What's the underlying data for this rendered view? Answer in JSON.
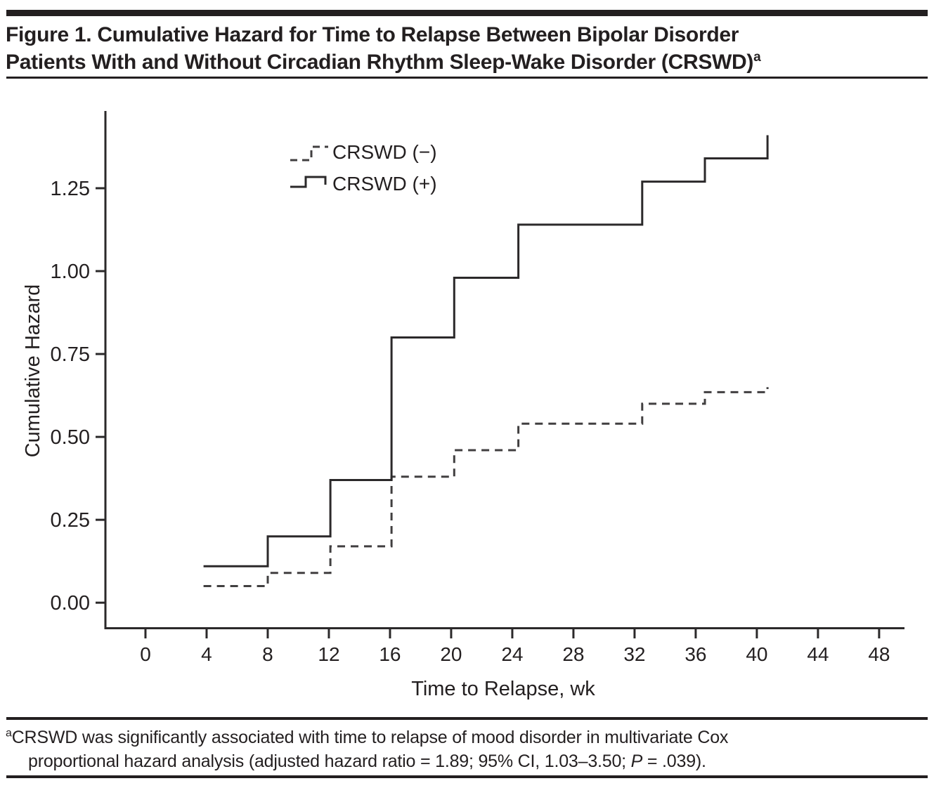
{
  "header": {
    "title_line1": "Figure 1. Cumulative Hazard for Time to Relapse Between Bipolar Disorder",
    "title_line2": "Patients With and Without Circadian Rhythm Sleep-Wake Disorder (CRSWD)",
    "title_sup": "a"
  },
  "footnote": {
    "sup": "a",
    "line1": "CRSWD was significantly associated with time to relapse of mood disorder in multivariate Cox",
    "line2_pre": "proportional hazard analysis (adjusted hazard ratio = 1.89; 95% CI, 1.03–3.50; ",
    "line2_italic": "P",
    "line2_post": " = .039)."
  },
  "colors": {
    "text": "#231f20",
    "rule": "#231f20",
    "line_solid": "#2b292a",
    "line_dashed": "#413f40",
    "background": "#ffffff"
  },
  "chart_data": {
    "type": "line",
    "subtype": "step-function-cumulative-hazard",
    "title": "Figure 1. Cumulative Hazard for Time to Relapse Between Bipolar Disorder Patients With and Without Circadian Rhythm Sleep-Wake Disorder (CRSWD)",
    "xlabel": "Time to Relapse, wk",
    "ylabel": "Cumulative Hazard",
    "xlim": [
      -2.62,
      49.66
    ],
    "ylim": [
      -0.077,
      1.483
    ],
    "grid": false,
    "xticks": {
      "values": [
        0,
        4,
        8,
        12,
        16,
        20,
        24,
        28,
        32,
        36,
        40,
        44,
        48
      ],
      "labels": [
        "0",
        "4",
        "8",
        "12",
        "16",
        "20",
        "24",
        "28",
        "32",
        "36",
        "40",
        "44",
        "48"
      ]
    },
    "yticks": {
      "values": [
        0,
        0.25,
        0.5,
        0.75,
        1.0,
        1.25
      ],
      "labels": [
        "0.00",
        "0.25",
        "0.50",
        "0.75",
        "1.00",
        "1.25"
      ]
    },
    "legend": {
      "position": "top-inside",
      "entries": [
        {
          "label": "CRSWD (−)",
          "style": "dashed"
        },
        {
          "label": "CRSWD (+)",
          "style": "solid"
        }
      ]
    },
    "series": [
      {
        "name": "CRSWD (−)",
        "style": "dashed",
        "points": [
          [
            3.8,
            0.05
          ],
          [
            8,
            0.05
          ],
          [
            8,
            0.09
          ],
          [
            12.1,
            0.09
          ],
          [
            12.1,
            0.17
          ],
          [
            16.1,
            0.17
          ],
          [
            16.1,
            0.38
          ],
          [
            20.2,
            0.38
          ],
          [
            20.2,
            0.46
          ],
          [
            24.4,
            0.46
          ],
          [
            24.4,
            0.54
          ],
          [
            32.5,
            0.54
          ],
          [
            32.5,
            0.6
          ],
          [
            36.6,
            0.6
          ],
          [
            36.6,
            0.635
          ],
          [
            40.7,
            0.635
          ],
          [
            40.7,
            0.65
          ]
        ]
      },
      {
        "name": "CRSWD (+)",
        "style": "solid",
        "points": [
          [
            3.8,
            0.11
          ],
          [
            8,
            0.11
          ],
          [
            8,
            0.2
          ],
          [
            12.1,
            0.2
          ],
          [
            12.1,
            0.37
          ],
          [
            16.1,
            0.37
          ],
          [
            16.1,
            0.8
          ],
          [
            20.2,
            0.8
          ],
          [
            20.2,
            0.98
          ],
          [
            24.4,
            0.98
          ],
          [
            24.4,
            1.14
          ],
          [
            32.5,
            1.14
          ],
          [
            32.5,
            1.27
          ],
          [
            36.6,
            1.27
          ],
          [
            36.6,
            1.34
          ],
          [
            40.7,
            1.34
          ],
          [
            40.7,
            1.41
          ]
        ]
      }
    ]
  }
}
